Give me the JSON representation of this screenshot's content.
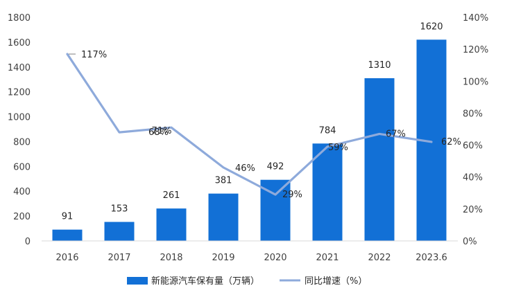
{
  "chart_data": {
    "type": "bar+line",
    "categories": [
      "2016",
      "2017",
      "2018",
      "2019",
      "2020",
      "2021",
      "2022",
      "2023.6"
    ],
    "series": [
      {
        "name": "新能源汽车保有量（万辆）",
        "type": "bar",
        "axis": "left",
        "values": [
          91,
          153,
          261,
          381,
          492,
          784,
          1310,
          1620
        ],
        "labels": [
          "91",
          "153",
          "261",
          "381",
          "492",
          "784",
          "1310",
          "1620"
        ],
        "color": "#1270d6"
      },
      {
        "name": "同比增速（%）",
        "type": "line",
        "axis": "right",
        "values": [
          117,
          68,
          71,
          46,
          29,
          59,
          67,
          62
        ],
        "labels": [
          "117%",
          "68%",
          "71%",
          "46%",
          "29%",
          "59%",
          "67%",
          "62%"
        ],
        "color": "#8eaadb"
      }
    ],
    "y_left": {
      "min": 0,
      "max": 1800,
      "ticks": [
        "0",
        "200",
        "400",
        "600",
        "800",
        "1000",
        "1200",
        "1400",
        "1600",
        "1800"
      ]
    },
    "y_right": {
      "min": 0,
      "max": 140,
      "ticks": [
        "0%",
        "20%",
        "40%",
        "60%",
        "80%",
        "100%",
        "120%",
        "140%"
      ]
    },
    "grid": false,
    "legend": "bottom"
  }
}
